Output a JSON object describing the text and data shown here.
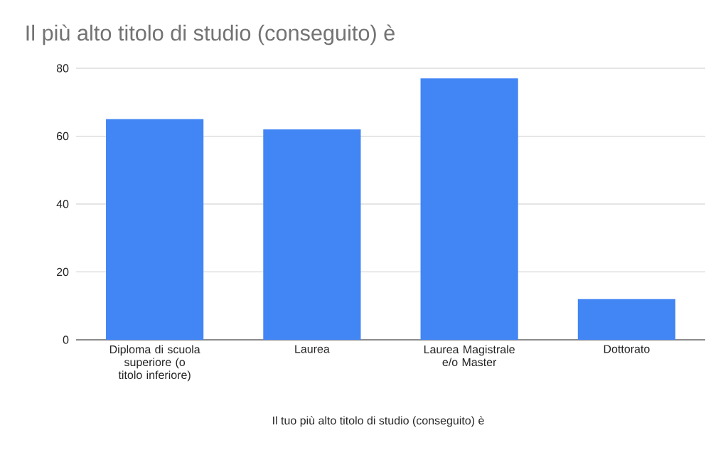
{
  "chart_data": {
    "type": "bar",
    "title": "Il più alto titolo di studio (conseguito) è",
    "xlabel": "Il tuo più alto titolo di studio (conseguito) è",
    "categories": [
      "Diploma di scuola superiore (o titolo inferiore)",
      "Laurea",
      "Laurea Magistrale e/o Master",
      "Dottorato"
    ],
    "values": [
      65,
      62,
      77,
      12
    ],
    "color": "#4285f4",
    "ylim": [
      0,
      80
    ],
    "yticks": [
      0,
      20,
      40,
      60,
      80
    ],
    "grid": "y"
  }
}
